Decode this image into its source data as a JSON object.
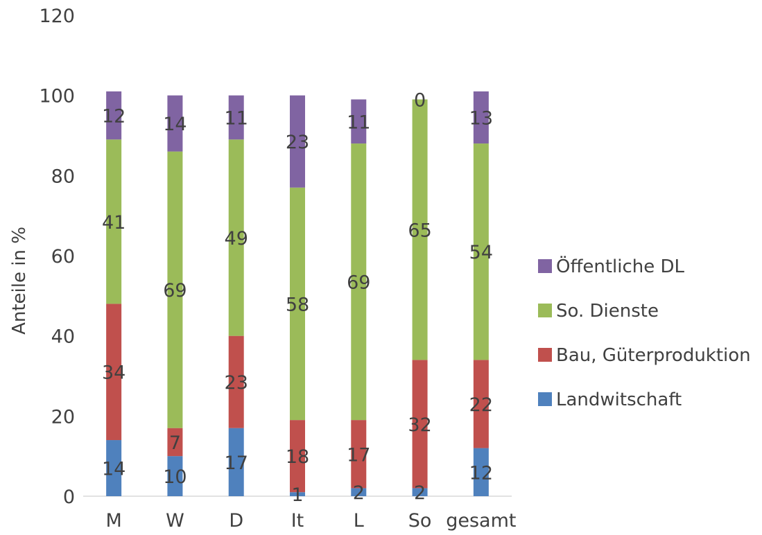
{
  "chart_data": {
    "type": "bar",
    "stacked": true,
    "categories": [
      "M",
      "W",
      "D",
      "It",
      "L",
      "So",
      "gesamt"
    ],
    "ylabel": "Anteile in %",
    "xlabel": "",
    "ylim": [
      0,
      120
    ],
    "yticks": [
      "0",
      "20",
      "40",
      "60",
      "80",
      "100",
      "120"
    ],
    "grid": false,
    "legend_position": "right",
    "series": [
      {
        "name": "Landwitschaft",
        "color": "#4f81bd",
        "values": [
          14,
          10,
          17,
          1,
          2,
          2,
          12
        ]
      },
      {
        "name": "Bau, Güterproduktion",
        "color": "#c0504d",
        "values": [
          34,
          7,
          23,
          18,
          17,
          32,
          22
        ]
      },
      {
        "name": "So. Dienste",
        "color": "#9bbb59",
        "values": [
          41,
          69,
          49,
          58,
          69,
          65,
          54
        ]
      },
      {
        "name": "Öffentliche DL",
        "color": "#8064a2",
        "values": [
          12,
          14,
          11,
          23,
          11,
          0,
          13
        ]
      }
    ]
  }
}
